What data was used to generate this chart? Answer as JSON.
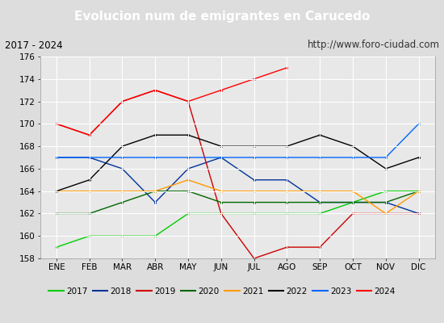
{
  "title": "Evolucion num de emigrantes en Carucedo",
  "subtitle_left": "2017 - 2024",
  "subtitle_right": "http://www.foro-ciudad.com",
  "months": [
    "ENE",
    "FEB",
    "MAR",
    "ABR",
    "MAY",
    "JUN",
    "JUL",
    "AGO",
    "SEP",
    "OCT",
    "NOV",
    "DIC"
  ],
  "ylim": [
    158,
    176
  ],
  "yticks": [
    158,
    160,
    162,
    164,
    166,
    168,
    170,
    172,
    174,
    176
  ],
  "series": {
    "2017": {
      "color": "#00cc00",
      "data": [
        159,
        160,
        160,
        160,
        162,
        162,
        162,
        162,
        162,
        163,
        164,
        164
      ]
    },
    "2018": {
      "color": "#003399",
      "data": [
        167,
        167,
        166,
        163,
        166,
        167,
        165,
        165,
        163,
        163,
        163,
        162
      ]
    },
    "2019": {
      "color": "#cc0000",
      "data": [
        170,
        169,
        172,
        173,
        172,
        162,
        158,
        159,
        159,
        162,
        162,
        162
      ]
    },
    "2020": {
      "color": "#006600",
      "data": [
        162,
        162,
        163,
        164,
        164,
        163,
        163,
        163,
        163,
        163,
        163,
        164
      ]
    },
    "2021": {
      "color": "#ff9900",
      "data": [
        164,
        164,
        164,
        164,
        165,
        164,
        164,
        164,
        164,
        164,
        162,
        164
      ]
    },
    "2022": {
      "color": "#000000",
      "data": [
        164,
        165,
        168,
        169,
        169,
        168,
        168,
        168,
        169,
        168,
        166,
        167
      ]
    },
    "2023": {
      "color": "#0066ff",
      "data": [
        167,
        167,
        167,
        167,
        167,
        167,
        167,
        167,
        167,
        167,
        167,
        170
      ]
    },
    "2024": {
      "color": "#ff0000",
      "data": [
        170,
        169,
        172,
        173,
        172,
        173,
        174,
        175,
        null,
        null,
        null,
        null
      ]
    }
  },
  "title_bg_color": "#4466bb",
  "title_font_color": "#ffffff",
  "subtitle_bg_color": "#dddddd",
  "plot_bg_color": "#e8e8e8",
  "grid_color": "#ffffff",
  "legend_bg_color": "#f5f5f5",
  "fig_bg_color": "#dddddd"
}
